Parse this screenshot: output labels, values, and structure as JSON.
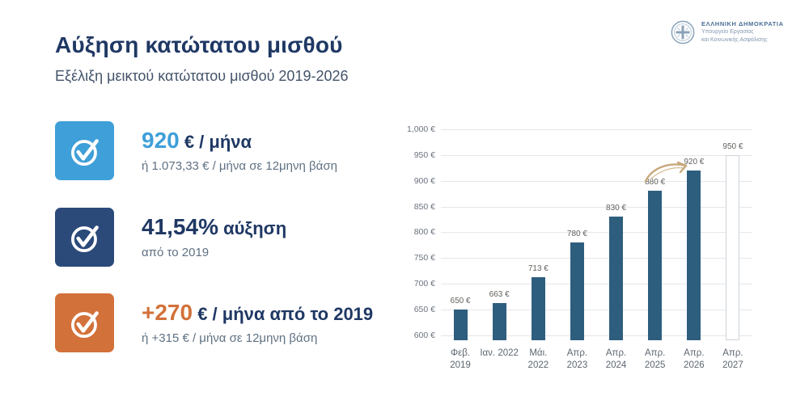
{
  "header": {
    "title": "Αύξηση κατώτατου μισθού",
    "subtitle": "Εξέλιξη μεικτού κατώτατου μισθού 2019-2026",
    "logo": {
      "line1": "ΕΛΛΗΝΙΚΗ ΔΗΜΟΚΡΑΤΙΑ",
      "line2": "Υπουργείο Εργασίας",
      "line3": "και Κοινωνικής Ασφάλισης"
    }
  },
  "colors": {
    "title_navy": "#1f3864",
    "accent_blue": "#3f9fd8",
    "accent_navy": "#2b4a7a",
    "accent_orange": "#d2713a",
    "bar_teal": "#2e5e7e"
  },
  "stats": [
    {
      "icon": "check-circle-icon",
      "icon_color": "#3f9fd8",
      "highlight": "920",
      "highlight_color": "#3f9fd8",
      "rest": " € / μήνα",
      "sub": "ή 1.073,33 € / μήνα σε 12μηνη βάση"
    },
    {
      "icon": "check-circle-icon",
      "icon_color": "#2b4a7a",
      "highlight": "41,54%",
      "highlight_color": "#1f3864",
      "rest": " αύξηση",
      "sub": "από το 2019"
    },
    {
      "icon": "check-circle-icon",
      "icon_color": "#d2713a",
      "highlight": "+270",
      "highlight_color": "#d2713a",
      "rest": " € / μήνα από το 2019",
      "sub": "ή +315 € / μήνα σε 12μηνη βάση"
    }
  ],
  "chart_data": {
    "type": "bar",
    "title": "",
    "xlabel": "",
    "ylabel": "",
    "categories": [
      "Φεβ. 2019",
      "Ιαν. 2022",
      "Μάι. 2022",
      "Απρ. 2023",
      "Απρ. 2024",
      "Απρ. 2025",
      "Απρ. 2026",
      "Απρ. 2027"
    ],
    "x_labels": [
      [
        "Φεβ.",
        "2019"
      ],
      [
        "Ιαν. 2022"
      ],
      [
        "Μάι.",
        "2022"
      ],
      [
        "Απρ.",
        "2023"
      ],
      [
        "Απρ.",
        "2024"
      ],
      [
        "Απρ.",
        "2025"
      ],
      [
        "Απρ.",
        "2026"
      ],
      [
        "Απρ.",
        "2027"
      ]
    ],
    "values": [
      650,
      663,
      713,
      780,
      830,
      880,
      920,
      950
    ],
    "bar_labels": [
      "650 €",
      "663 €",
      "713 €",
      "780 €",
      "830 €",
      "880 €",
      "920 €",
      "950 €"
    ],
    "y_ticks": [
      {
        "value": 1000,
        "label": "1,000 €"
      },
      {
        "value": 950,
        "label": "950 €"
      },
      {
        "value": 900,
        "label": "900 €"
      },
      {
        "value": 850,
        "label": "850 €"
      },
      {
        "value": 800,
        "label": "800 €"
      },
      {
        "value": 750,
        "label": "750 €"
      },
      {
        "value": 700,
        "label": "700 €"
      },
      {
        "value": 650,
        "label": "650 €"
      },
      {
        "value": 600,
        "label": "600 €"
      }
    ],
    "ylim": [
      595,
      1000
    ],
    "grid": true,
    "legend": false,
    "bar_color": "#2e5e7e",
    "future_bar_index": 7,
    "annotation": "hand-drawn-arrow pointing to 920 € bar"
  }
}
